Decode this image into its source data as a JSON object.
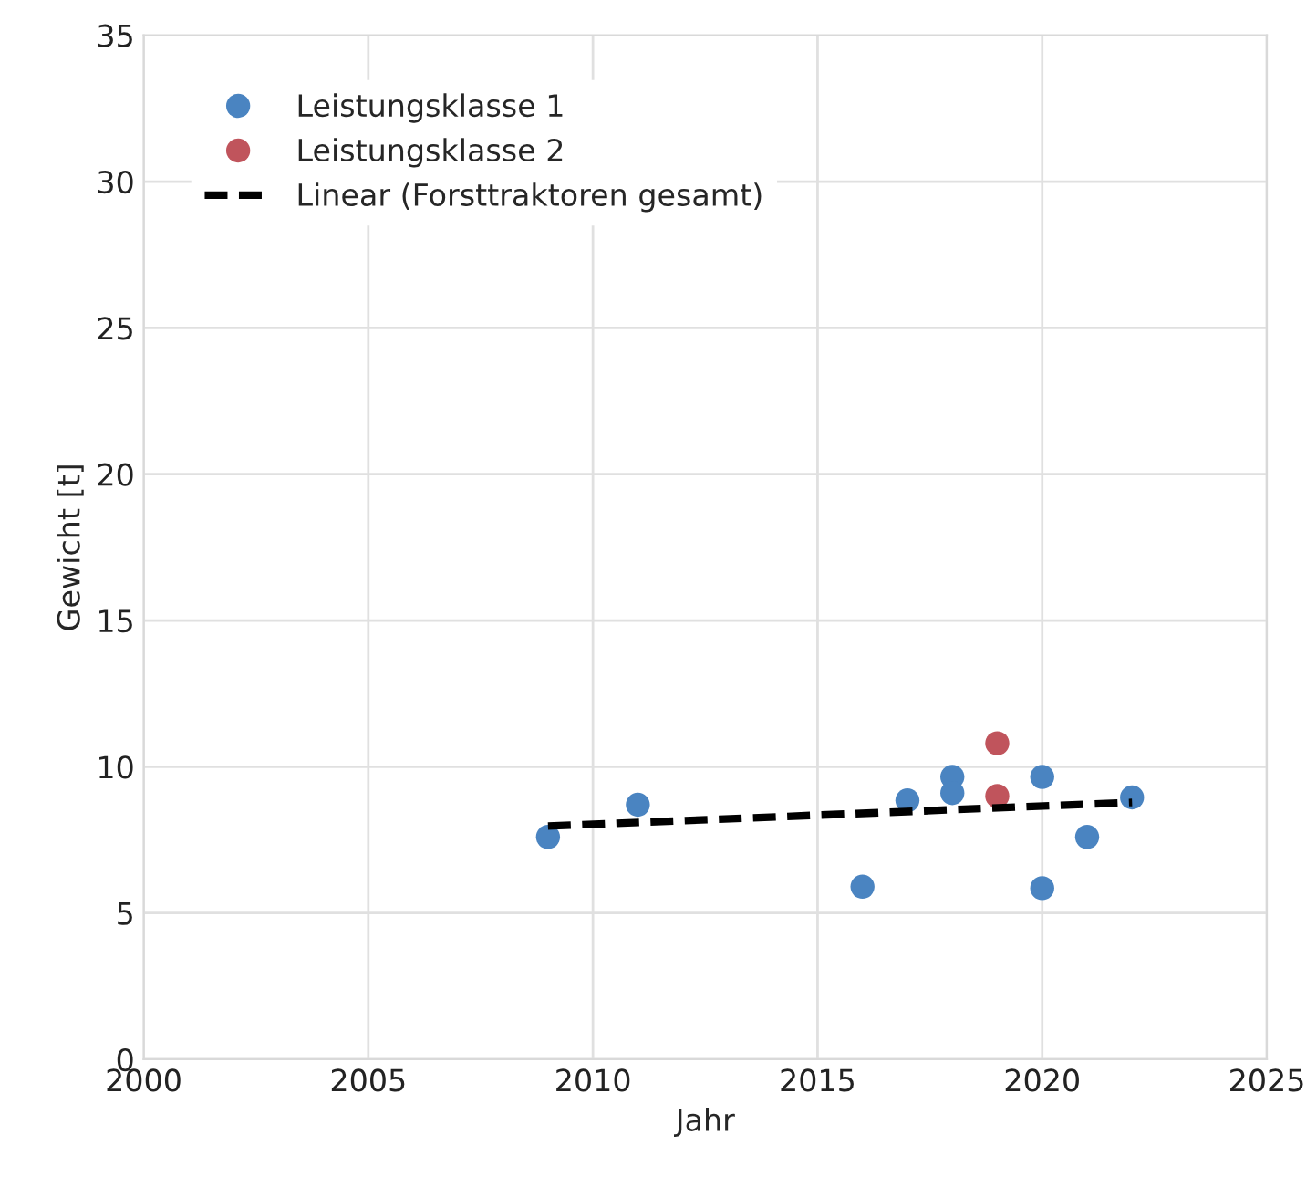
{
  "chart_data": {
    "type": "scatter",
    "xlabel": "Jahr",
    "ylabel": "Gewicht [t]",
    "xlim": [
      2000,
      2025
    ],
    "xticks": [
      2000,
      2005,
      2010,
      2015,
      2020,
      2025
    ],
    "ylim": [
      0,
      35
    ],
    "yticks": [
      0,
      5,
      10,
      15,
      20,
      25,
      30,
      35
    ],
    "grid": true,
    "legend": "top left",
    "marker": "circle",
    "series": [
      {
        "name": "Leistungsklasse 1",
        "color": "#4a84c1",
        "x": [
          2009,
          2011,
          2016,
          2017,
          2018,
          2018,
          2020,
          2020,
          2021,
          2022
        ],
        "values": [
          7.6,
          8.7,
          5.9,
          8.85,
          9.65,
          9.1,
          9.65,
          5.85,
          7.6,
          8.95
        ]
      },
      {
        "name": "Leistungsklasse 2",
        "color": "#c0545c",
        "x": [
          2019,
          2019
        ],
        "values": [
          10.8,
          9.0
        ]
      },
      {
        "name": "Linear (Forsttraktoren gesamt)",
        "type": "line",
        "color": "#000000",
        "line_style": "dashed",
        "marker": "none",
        "x": [
          2009,
          2022
        ],
        "values": [
          7.97,
          8.78
        ]
      }
    ]
  }
}
